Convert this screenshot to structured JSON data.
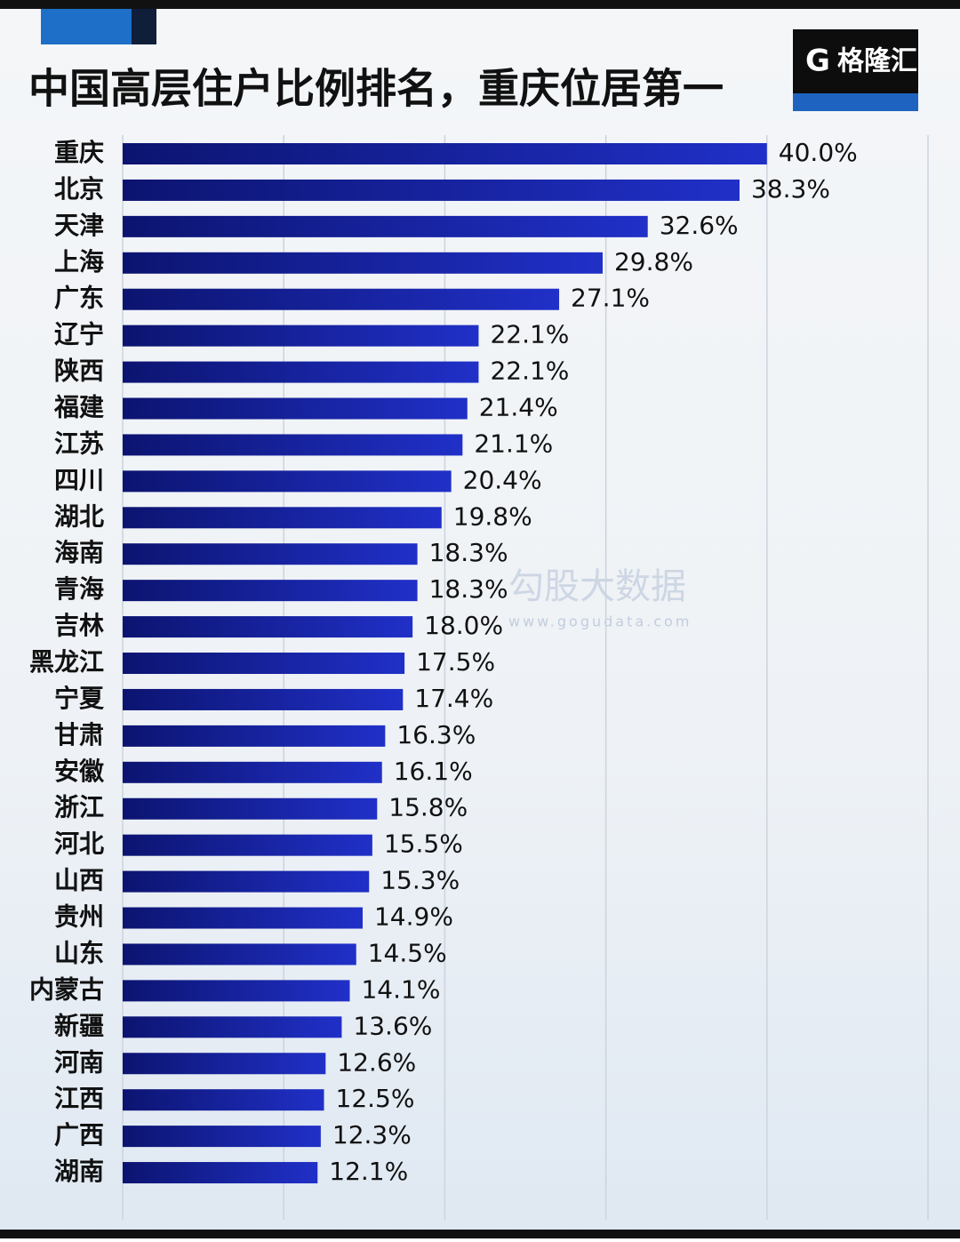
{
  "chart_data": {
    "type": "bar",
    "orientation": "horizontal",
    "title": "中国高层住户比例排名，重庆位居第一",
    "logo": "格隆汇",
    "watermark": "勾股大数据",
    "watermark_url": "www.gogudata.com",
    "categories": [
      "重庆",
      "北京",
      "天津",
      "上海",
      "广东",
      "辽宁",
      "陕西",
      "福建",
      "江苏",
      "四川",
      "湖北",
      "海南",
      "青海",
      "吉林",
      "黑龙江",
      "宁夏",
      "甘肃",
      "安徽",
      "浙江",
      "河北",
      "山西",
      "贵州",
      "山东",
      "内蒙古",
      "新疆",
      "河南",
      "江西",
      "广西",
      "湖南"
    ],
    "values": [
      40.0,
      38.3,
      32.6,
      29.8,
      27.1,
      22.1,
      22.1,
      21.4,
      21.1,
      20.4,
      19.8,
      18.3,
      18.3,
      18.0,
      17.5,
      17.4,
      16.3,
      16.1,
      15.8,
      15.5,
      15.3,
      14.9,
      14.5,
      14.1,
      13.6,
      12.6,
      12.5,
      12.3,
      12.1
    ],
    "value_labels": [
      "40.0%",
      "38.3%",
      "32.6%",
      "29.8%",
      "27.1%",
      "22.1%",
      "22.1%",
      "21.4%",
      "21.1%",
      "20.4%",
      "19.8%",
      "18.3%",
      "18.3%",
      "18.0%",
      "17.5%",
      "17.4%",
      "16.3%",
      "16.1%",
      "15.8%",
      "15.5%",
      "15.3%",
      "14.9%",
      "14.5%",
      "14.1%",
      "13.6%",
      "12.6%",
      "12.5%",
      "12.3%",
      "12.1%"
    ],
    "color": "#1a1fa0",
    "xlim": [
      0,
      50
    ],
    "xticks": [
      0,
      10,
      20,
      30,
      40,
      50
    ],
    "grid": true
  }
}
